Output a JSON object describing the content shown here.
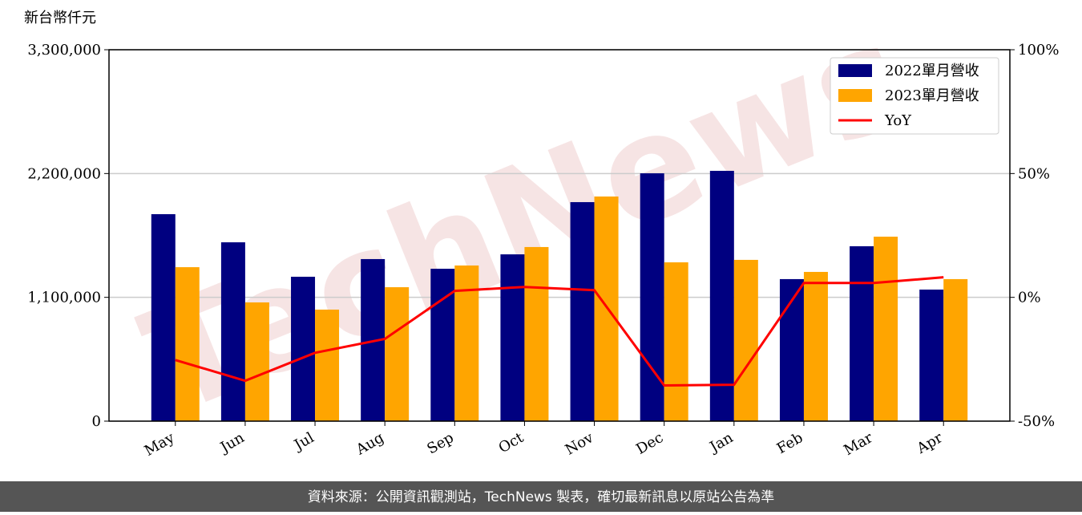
{
  "chart_data": {
    "type": "bar",
    "y_label": "新台幣仟元",
    "watermark": "TechNews",
    "categories": [
      "May",
      "Jun",
      "Jul",
      "Aug",
      "Sep",
      "Oct",
      "Nov",
      "Dec",
      "Jan",
      "Feb",
      "Mar",
      "Apr"
    ],
    "series": [
      {
        "name": "2022單月營收",
        "color": "#000080",
        "values": [
          1839000,
          1589000,
          1283000,
          1440000,
          1354000,
          1482000,
          1946000,
          2202000,
          2224000,
          1262000,
          1554000,
          1169000
        ]
      },
      {
        "name": "2023單月營收",
        "color": "#ffa500",
        "values": [
          1368000,
          1055000,
          991000,
          1190000,
          1383000,
          1547000,
          1996000,
          1411000,
          1433000,
          1326000,
          1639000,
          1262000
        ]
      },
      {
        "name": "YoY",
        "color": "#ff0000",
        "type": "line",
        "axis": "y2",
        "values": [
          -25.3,
          -33.7,
          -22.4,
          -16.8,
          2.6,
          4.2,
          2.9,
          -35.6,
          -35.3,
          5.8,
          5.8,
          8.1
        ]
      }
    ],
    "ylim": [
      0,
      3300000
    ],
    "yticks": [
      0,
      {
        "value": 1100000,
        "label": "1,100,000"
      },
      {
        "value": 2200000,
        "label": "2,200,000"
      },
      {
        "value": 3300000,
        "label": "3,300,000"
      }
    ],
    "y2lim": [
      -50,
      100
    ],
    "y2ticks": [
      {
        "value": -50,
        "label": "-50%"
      },
      {
        "value": 0,
        "label": "0%"
      },
      {
        "value": 50,
        "label": "50%"
      },
      {
        "value": 100,
        "label": "100%"
      }
    ],
    "grid": true,
    "legend": "upper right",
    "footer": "資料來源：公開資訊觀測站，TechNews 製表，確切最新訊息以原站公告為準"
  }
}
